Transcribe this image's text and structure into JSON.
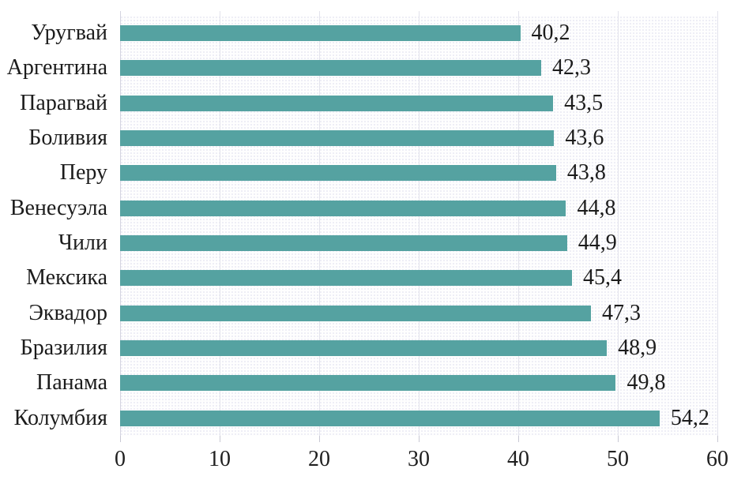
{
  "chart_data": {
    "type": "bar",
    "orientation": "horizontal",
    "title": "",
    "xlabel": "",
    "ylabel": "",
    "categories": [
      "Уругвай",
      "Аргентина",
      "Парагвай",
      "Боливия",
      "Перу",
      "Венесуэла",
      "Чили",
      "Мексика",
      "Эквадор",
      "Бразилия",
      "Панама",
      "Колумбия"
    ],
    "values": [
      40.2,
      42.3,
      43.5,
      43.6,
      43.8,
      44.8,
      44.9,
      45.4,
      47.3,
      48.9,
      49.8,
      54.2
    ],
    "value_labels": [
      "40,2",
      "42,3",
      "43,5",
      "43,6",
      "43,8",
      "44,8",
      "44,9",
      "45,4",
      "47,3",
      "48,9",
      "49,8",
      "54,2"
    ],
    "xlim": [
      0,
      60
    ],
    "x_ticks": [
      0,
      10,
      20,
      30,
      40,
      50,
      60
    ],
    "x_tick_labels": [
      "0",
      "10",
      "20",
      "30",
      "40",
      "50",
      "60"
    ],
    "grid": "vertical",
    "legend_position": "none",
    "decimal_separator": ",",
    "colors": {
      "bar": "#55a2a1",
      "gridline": "#e3e3ec",
      "zero_axis": "#d4d4e0",
      "text": "#1c1c1c",
      "plot_background": "#fefefe"
    }
  }
}
